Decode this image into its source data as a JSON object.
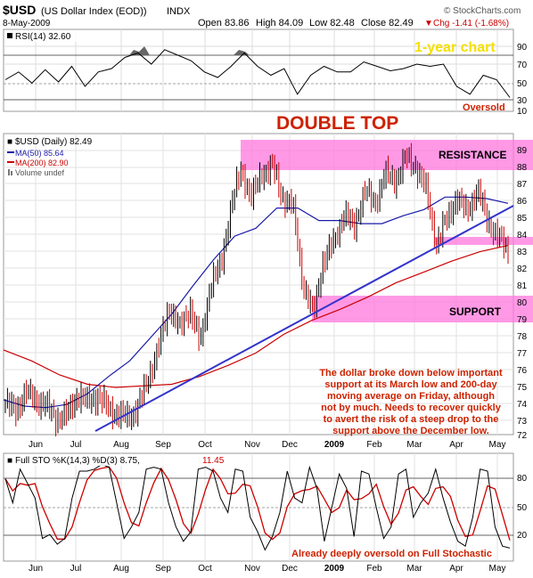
{
  "header": {
    "symbol": "$USD",
    "name": "(US Dollar Index (EOD))",
    "exchange": "INDX",
    "date": "8-May-2009",
    "open": "Open 83.86",
    "high": "High 84.09",
    "low": "Low 82.48",
    "close": "Close 82.49",
    "change": "Chg -1.41 (-1.68%)",
    "change_arrow": "▼",
    "copyright": "© StockCharts.com"
  },
  "rsi_panel": {
    "label": "RSI(14) 32.60",
    "badge": "1-year chart",
    "note": "Oversold",
    "ticks": [
      "90",
      "70",
      "50",
      "30",
      "10"
    ],
    "chart_data": {
      "type": "line",
      "series": [
        {
          "name": "RSI(14)",
          "values": [
            48,
            55,
            45,
            57,
            46,
            60,
            42,
            55,
            58,
            68,
            72,
            62,
            75,
            70,
            65,
            55,
            50,
            60,
            72,
            60,
            52,
            58,
            35,
            52,
            60,
            55,
            55,
            64,
            60,
            56,
            58,
            62,
            60,
            62,
            42,
            35,
            52,
            48,
            32
          ]
        }
      ],
      "ylim": [
        0,
        100
      ]
    }
  },
  "main_panel": {
    "legend_symbol": "$USD (Daily) 82.49",
    "legend_ma50": "MA(50) 85.64",
    "legend_ma200": "MA(200) 82.90",
    "legend_volume": "Volume undef",
    "title_annotation": "DOUBLE TOP",
    "resistance_label": "RESISTANCE",
    "support_label": "SUPPORT",
    "commentary": [
      "The dollar broke down below important",
      "support at its March low and 200-day",
      "moving average on Friday, although",
      "not by much. Needs to recover quickly",
      "to avert the risk of a steep drop to the",
      "support above the December low."
    ],
    "y_ticks": [
      "89",
      "88",
      "87",
      "86",
      "85",
      "84",
      "83",
      "82",
      "81",
      "80",
      "79",
      "78",
      "77",
      "76",
      "75",
      "74",
      "73",
      "72"
    ],
    "x_labels": [
      "Jun",
      "Jul",
      "Aug",
      "Sep",
      "Oct",
      "Nov",
      "Dec",
      "2009",
      "Feb",
      "Mar",
      "Apr",
      "May"
    ],
    "colors": {
      "price_up": "#000000",
      "price_down": "#cc0000",
      "ma50": "#1a1aaa",
      "ma200": "#cc0000",
      "trendline": "#3333cc",
      "zone": "#ff77dd",
      "annotation": "#cc2200"
    },
    "chart_data": {
      "type": "line",
      "ylim": [
        71,
        89.5
      ],
      "series": [
        {
          "name": "$USD",
          "values": [
            72.8,
            72.3,
            73.5,
            73.0,
            72.6,
            71.8,
            72.0,
            73.3,
            72.9,
            73.2,
            72.5,
            72.0,
            71.9,
            72.6,
            74.5,
            76.5,
            79.0,
            77.5,
            79.0,
            76.5,
            80.5,
            81.5,
            85.5,
            87.7,
            86.0,
            87.5,
            88.0,
            86.0,
            85.5,
            80.5,
            78.5,
            82.0,
            83.0,
            85.0,
            84.0,
            86.5,
            85.5,
            87.5,
            87.0,
            88.5,
            88.0,
            86.5,
            83.0,
            84.5,
            86.0,
            85.0,
            86.5,
            84.5,
            83.5,
            82.5
          ]
        },
        {
          "name": "MA(50)",
          "values": [
            73.0,
            72.6,
            72.5,
            72.7,
            73.4,
            74.5,
            75.5,
            77.0,
            78.5,
            80.3,
            82.0,
            83.5,
            84.0,
            85.3,
            85.3,
            84.5,
            84.5,
            84.3,
            84.3,
            84.8,
            85.2,
            86.0,
            86.0,
            85.9,
            85.6
          ]
        },
        {
          "name": "MA(200)",
          "values": [
            76.2,
            75.5,
            74.6,
            74.0,
            73.8,
            73.9,
            74.0,
            74.5,
            75.2,
            76.0,
            77.2,
            78.1,
            78.8,
            79.6,
            80.5,
            81.2,
            81.9,
            82.5,
            82.9
          ]
        }
      ]
    }
  },
  "sto_panel": {
    "label": "Full STO %K(14,3) %D(3) 8.75,",
    "label_d": "11.45",
    "note": "Already deeply oversold on Full Stochastic",
    "ticks": [
      "80",
      "50",
      "20"
    ],
    "x_labels": [
      "Jun",
      "Jul",
      "Aug",
      "Sep",
      "Oct",
      "Nov",
      "Dec",
      "2009",
      "Feb",
      "Mar",
      "Apr",
      "May"
    ],
    "chart_data": {
      "type": "line",
      "series": [
        {
          "name": "%K",
          "values": [
            80,
            55,
            90,
            75,
            60,
            18,
            22,
            12,
            18,
            60,
            88,
            88,
            90,
            95,
            92,
            55,
            18,
            30,
            45,
            90,
            92,
            90,
            55,
            30,
            15,
            25,
            90,
            92,
            88,
            60,
            45,
            90,
            88,
            40,
            25,
            6,
            20,
            45,
            88,
            60,
            55,
            92,
            70,
            15,
            50,
            85,
            70,
            20,
            88,
            85,
            50,
            18,
            30,
            85,
            90,
            40,
            55,
            65,
            90,
            60,
            35,
            15,
            10,
            40,
            90,
            88,
            30,
            10,
            8
          ]
        }
      ],
      "ylim": [
        0,
        100
      ]
    }
  }
}
